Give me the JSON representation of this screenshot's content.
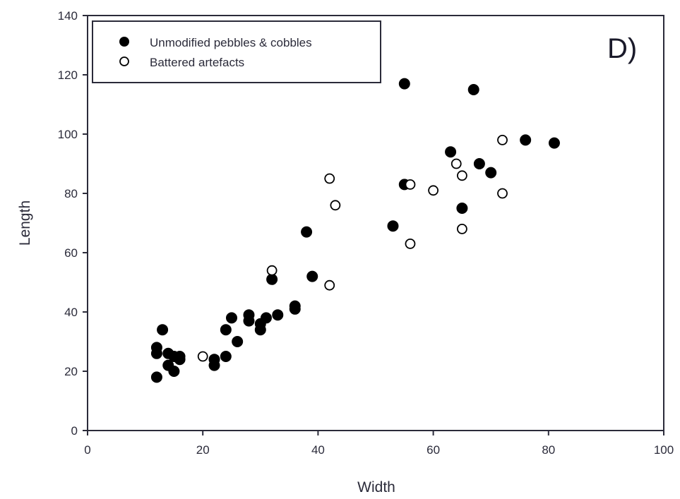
{
  "chart_data": {
    "type": "scatter",
    "panel_label": "D)",
    "xlabel": "Width",
    "ylabel": "Length",
    "xlim": [
      0,
      100
    ],
    "ylim": [
      0,
      140
    ],
    "xticks": [
      "0",
      "20",
      "40",
      "60",
      "80",
      "100"
    ],
    "yticks": [
      "0",
      "20",
      "40",
      "60",
      "80",
      "100",
      "120",
      "140"
    ],
    "grid": false,
    "legend_position": "top-left",
    "series": [
      {
        "name": "Unmodified pebbles & cobbles",
        "marker": "filled-circle",
        "color": "#000000",
        "points": [
          [
            12,
            18
          ],
          [
            12,
            26
          ],
          [
            12,
            28
          ],
          [
            13,
            34
          ],
          [
            14,
            22
          ],
          [
            14,
            26
          ],
          [
            15,
            20
          ],
          [
            15,
            25
          ],
          [
            16,
            24
          ],
          [
            16,
            25
          ],
          [
            22,
            22
          ],
          [
            22,
            24
          ],
          [
            24,
            25
          ],
          [
            24,
            34
          ],
          [
            25,
            38
          ],
          [
            26,
            30
          ],
          [
            28,
            37
          ],
          [
            28,
            39
          ],
          [
            30,
            34
          ],
          [
            30,
            36
          ],
          [
            31,
            38
          ],
          [
            32,
            51
          ],
          [
            33,
            39
          ],
          [
            36,
            41
          ],
          [
            36,
            42
          ],
          [
            38,
            67
          ],
          [
            39,
            52
          ],
          [
            53,
            69
          ],
          [
            55,
            83
          ],
          [
            55,
            117
          ],
          [
            63,
            94
          ],
          [
            65,
            75
          ],
          [
            67,
            115
          ],
          [
            68,
            90
          ],
          [
            70,
            87
          ],
          [
            76,
            98
          ],
          [
            81,
            97
          ]
        ]
      },
      {
        "name": "Battered artefacts",
        "marker": "open-circle",
        "color": "#000000",
        "points": [
          [
            20,
            25
          ],
          [
            32,
            54
          ],
          [
            42,
            49
          ],
          [
            42,
            85
          ],
          [
            43,
            76
          ],
          [
            56,
            63
          ],
          [
            56,
            83
          ],
          [
            60,
            81
          ],
          [
            64,
            90
          ],
          [
            65,
            86
          ],
          [
            65,
            68
          ],
          [
            72,
            98
          ],
          [
            72,
            80
          ]
        ]
      }
    ]
  }
}
